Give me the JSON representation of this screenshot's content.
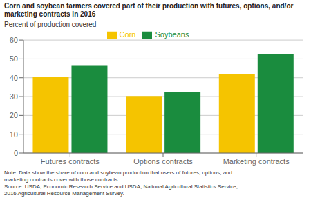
{
  "chart_data": {
    "type": "bar",
    "title": "Corn and soybean farmers covered part of their production with futures, options, and/or\nmarketing contracts in 2016",
    "ylabel": "Percent of production covered",
    "categories": [
      "Futures contracts",
      "Options contracts",
      "Marketing contracts"
    ],
    "series": [
      {
        "name": "Corn",
        "color": "#F5C400",
        "values": [
          40.5,
          30.3,
          41.7
        ]
      },
      {
        "name": "Soybeans",
        "color": "#1A8C3E",
        "values": [
          46.7,
          32.5,
          52.5
        ]
      }
    ],
    "ylim": [
      0,
      60
    ],
    "yticks": [
      0,
      10,
      20,
      30,
      40,
      50,
      60
    ],
    "grid": true,
    "legend": "top",
    "annotations": [
      "Note: Data show the share of corn and soybean production that users of futures, options, and\nmarketing contracts cover with those contracts.\nSource: USDA, Economic Research Service and USDA, National Agricultural Statistics Service,\n2016 Agricultural Resource Management Survey."
    ]
  }
}
